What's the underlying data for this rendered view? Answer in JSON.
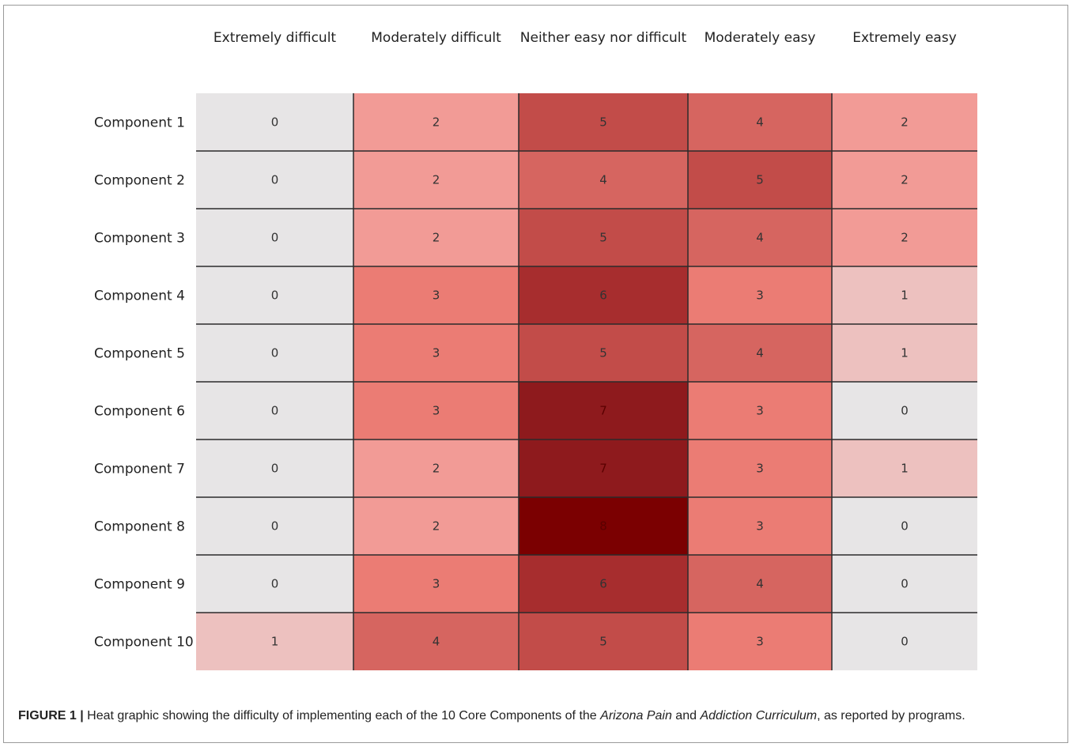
{
  "chart_data": {
    "type": "heatmap",
    "columns": [
      "Extremely difficult",
      "Moderately difficult",
      "Neither easy nor difficult",
      "Moderately easy",
      "Extremely easy"
    ],
    "rows": [
      "Component 1",
      "Component 2",
      "Component 3",
      "Component 4",
      "Component 5",
      "Component 6",
      "Component 7",
      "Component 8",
      "Component 9",
      "Component 10"
    ],
    "values": [
      [
        0,
        2,
        5,
        4,
        2
      ],
      [
        0,
        2,
        4,
        5,
        2
      ],
      [
        0,
        2,
        5,
        4,
        2
      ],
      [
        0,
        3,
        6,
        3,
        1
      ],
      [
        0,
        3,
        5,
        4,
        1
      ],
      [
        0,
        3,
        7,
        3,
        0
      ],
      [
        0,
        2,
        7,
        3,
        1
      ],
      [
        0,
        2,
        8,
        3,
        0
      ],
      [
        0,
        3,
        6,
        4,
        0
      ],
      [
        1,
        4,
        5,
        3,
        0
      ]
    ],
    "colors": {
      "0": "#e7e5e6",
      "1": "#edc1bf",
      "2": "#f29b96",
      "3": "#eb7c74",
      "4": "#d66560",
      "5": "#c24c49",
      "6": "#a72d2e",
      "7": "#8e1a1d",
      "8": "#7b0001"
    }
  },
  "caption": {
    "label": "FIGURE 1 |",
    "text_1": " Heat graphic showing the difficulty of implementing each of the 10 Core Components of the ",
    "italic_1": "Arizona Pain",
    "text_2": " and ",
    "italic_2": "Addiction Curriculum",
    "text_3": ", as reported by programs."
  }
}
